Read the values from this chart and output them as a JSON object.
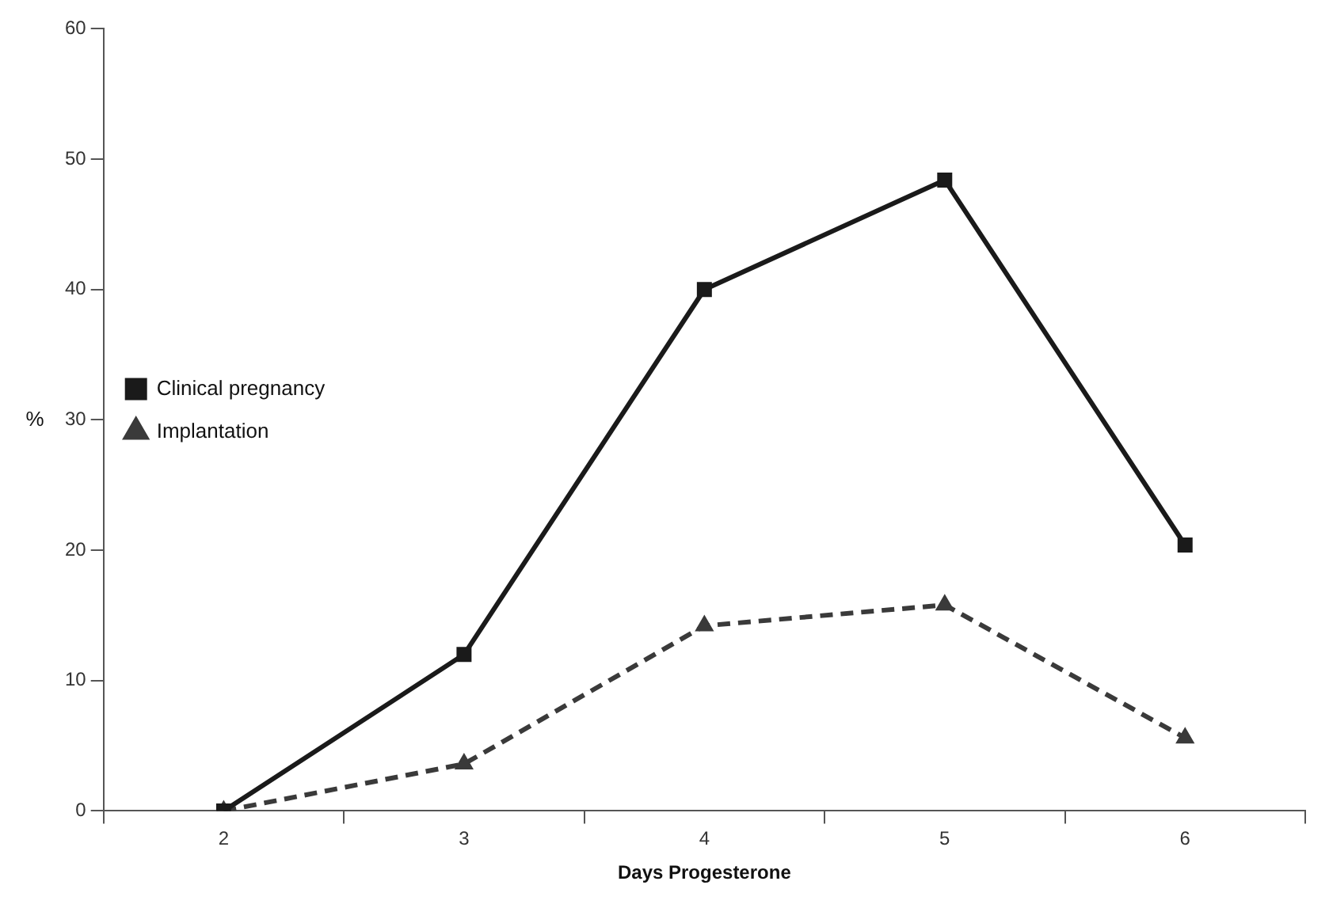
{
  "chart_data": {
    "type": "line",
    "xlabel": "Days Progesterone",
    "ylabel": "%",
    "categories": [
      "2",
      "3",
      "4",
      "5",
      "6"
    ],
    "series": [
      {
        "name": "Clinical pregnancy",
        "color": "#1a1a1a",
        "marker": "square",
        "line_style": "solid",
        "values": [
          0,
          12,
          40,
          48.4,
          20.4
        ]
      },
      {
        "name": "Implantation",
        "color": "#3a3a3a",
        "marker": "triangle",
        "line_style": "dashed",
        "values": [
          0,
          3.6,
          14.2,
          15.8,
          5.6
        ]
      }
    ],
    "ylim": [
      0,
      60
    ],
    "yticks": [
      0,
      10,
      20,
      30,
      40,
      50,
      60
    ],
    "grid": false,
    "legend": "left"
  }
}
